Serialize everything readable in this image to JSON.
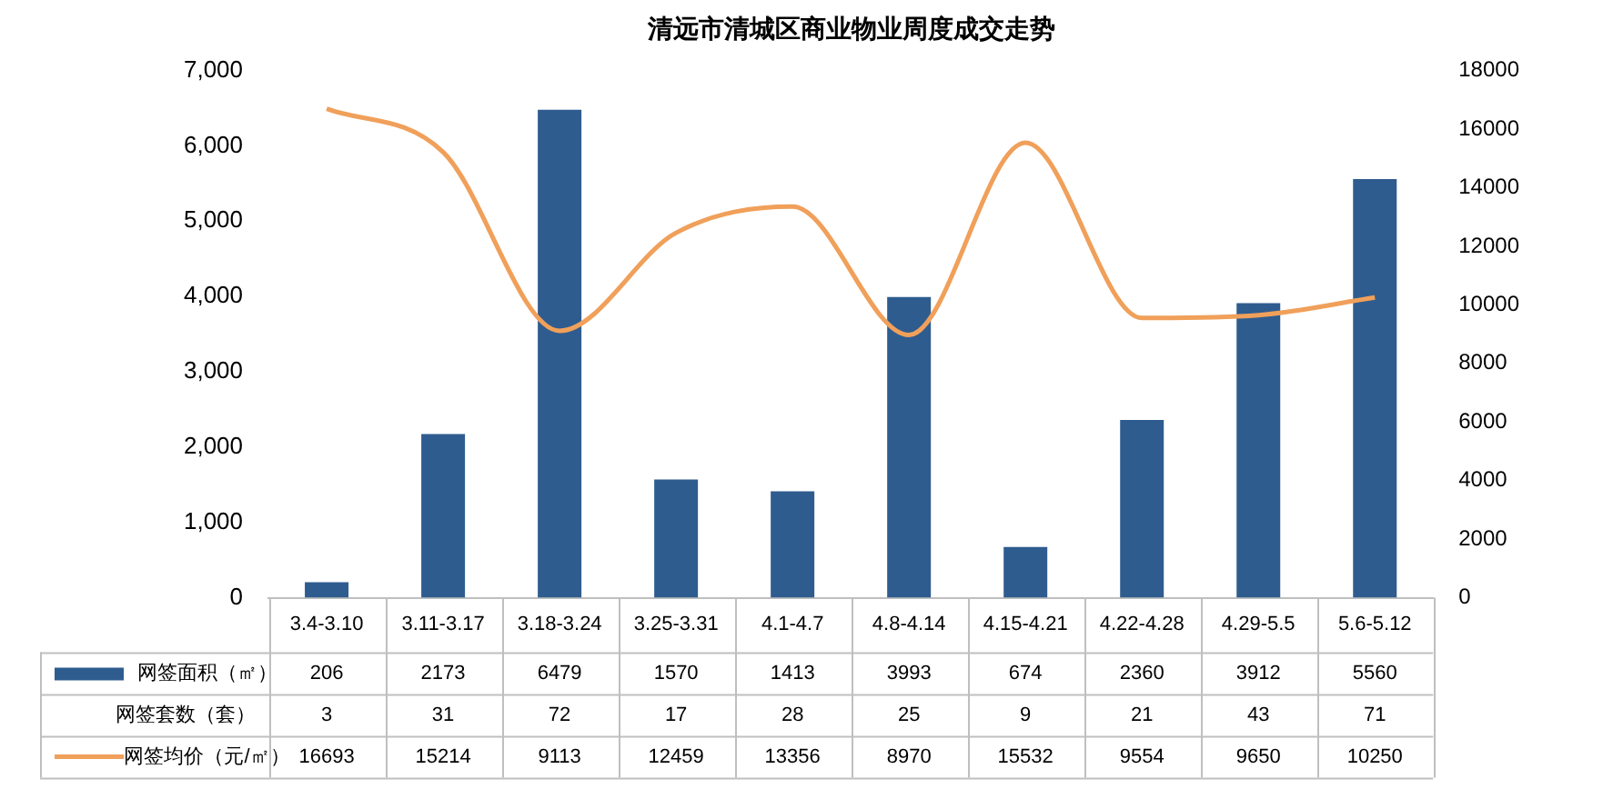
{
  "chart_data": {
    "type": "bar",
    "title": "清远市清城区商业物业周度成交走势",
    "categories": [
      "3.4-3.10",
      "3.11-3.17",
      "3.18-3.24",
      "3.25-3.31",
      "4.1-4.7",
      "4.8-4.14",
      "4.15-4.21",
      "4.22-4.28",
      "4.29-5.5",
      "5.6-5.12"
    ],
    "series": [
      {
        "name": "网签面积（㎡）",
        "color": "#2f5c8f",
        "values": [
          206,
          2173,
          6479,
          1570,
          1413,
          3993,
          674,
          2360,
          3912,
          5560
        ]
      },
      {
        "name": "网签均价（元/㎡）",
        "type": "line",
        "axis": "y2",
        "color": "#f0a05a",
        "values": [
          16693,
          15214,
          9113,
          12459,
          13356,
          8970,
          15532,
          9554,
          9650,
          10250
        ]
      }
    ],
    "ylim": [
      0,
      7000
    ],
    "yticks": [
      0,
      {
        "value": 1000,
        "label": "1,000"
      },
      {
        "value": 2000,
        "label": "2,000"
      },
      {
        "value": 3000,
        "label": "3,000"
      },
      {
        "value": 4000,
        "label": "4,000"
      },
      {
        "value": 5000,
        "label": "5,000"
      },
      {
        "value": 6000,
        "label": "6,000"
      },
      {
        "value": 7000,
        "label": "7,000"
      }
    ],
    "y2lim": [
      0,
      18000
    ],
    "y2ticks": [
      0,
      2000,
      4000,
      6000,
      8000,
      10000,
      12000,
      14000,
      16000,
      18000
    ],
    "annotations": [
      "网签套数（套）",
      "3",
      "31",
      "72",
      "17",
      "28",
      "25",
      "9",
      "21",
      "43",
      "71"
    ],
    "grid": false,
    "legend": "bottom",
    "data_labels": true,
    "marker": "none"
  }
}
